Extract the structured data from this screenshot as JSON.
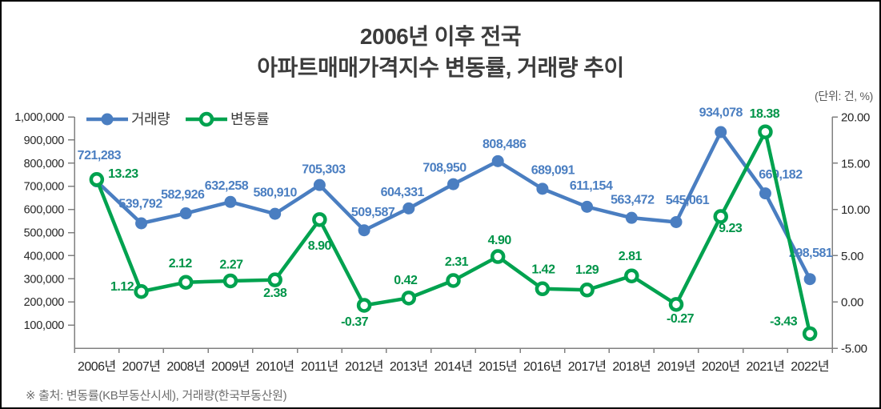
{
  "header": {
    "title_line1": "2006년 이후 전국",
    "title_line2": "아파트매매가격지수 변동률, 거래량 추이"
  },
  "unit_label": "(단위: 건, %)",
  "legend": {
    "items": [
      {
        "label": "거래량",
        "color": "#4a7ec1",
        "marker": "filled-circle"
      },
      {
        "label": "변동률",
        "color": "#00a24f",
        "marker": "open-circle"
      }
    ],
    "position": "top-left"
  },
  "footer": {
    "source": "※ 출처: 변동률(KB부동산시세), 거래량(한국부동산원)"
  },
  "colors": {
    "volume_series": "#4a7ec1",
    "rate_series": "#00a24f",
    "rate_label": "#009448",
    "axis_line": "#808080",
    "axis_text": "#262626",
    "title_text": "#3c3c3c",
    "legend_text": "#3b3b3b"
  },
  "chart_data": {
    "type": "line",
    "title": "2006년 이후 전국 아파트매매가격지수 변동률, 거래량 추이",
    "unit": "(단위: 건, %)",
    "categories": [
      "2006년",
      "2007년",
      "2008년",
      "2009년",
      "2010년",
      "2011년",
      "2012년",
      "2013년",
      "2014년",
      "2015년",
      "2016년",
      "2017년",
      "2018년",
      "2019년",
      "2020년",
      "2021년",
      "2022년"
    ],
    "series": [
      {
        "name": "거래량",
        "axis": "left",
        "color": "#4a7ec1",
        "label_color": "#4a7ec1",
        "marker": "filled",
        "value_format": "thousands",
        "values": [
          721283,
          539792,
          582926,
          632258,
          580910,
          705303,
          509587,
          604331,
          708950,
          808486,
          689091,
          611154,
          563472,
          545061,
          934078,
          669182,
          298581
        ]
      },
      {
        "name": "변동률",
        "axis": "right",
        "color": "#00a24f",
        "label_color": "#009448",
        "marker": "open",
        "value_format": "decimal2",
        "values": [
          13.23,
          1.12,
          2.12,
          2.27,
          2.38,
          8.9,
          -0.37,
          0.42,
          2.31,
          4.9,
          1.42,
          1.29,
          2.81,
          -0.27,
          9.23,
          18.38,
          -3.43
        ]
      }
    ],
    "left_axis": {
      "min": 0,
      "max": 1000000,
      "ticks": [
        100000,
        200000,
        300000,
        400000,
        500000,
        600000,
        700000,
        800000,
        900000,
        1000000
      ],
      "tick_labels": [
        "100,000",
        "200,000",
        "300,000",
        "400,000",
        "500,000",
        "600,000",
        "700,000",
        "800,000",
        "900,000",
        "1,000,000"
      ]
    },
    "right_axis": {
      "min": -5,
      "max": 20,
      "ticks": [
        -5,
        0,
        5,
        10,
        15,
        20
      ],
      "tick_labels": [
        "-5.00",
        "0.00",
        "5.00",
        "10.00",
        "15.00",
        "20.00"
      ]
    },
    "grid": false,
    "legend_position": "top-left",
    "data_labels": true
  }
}
